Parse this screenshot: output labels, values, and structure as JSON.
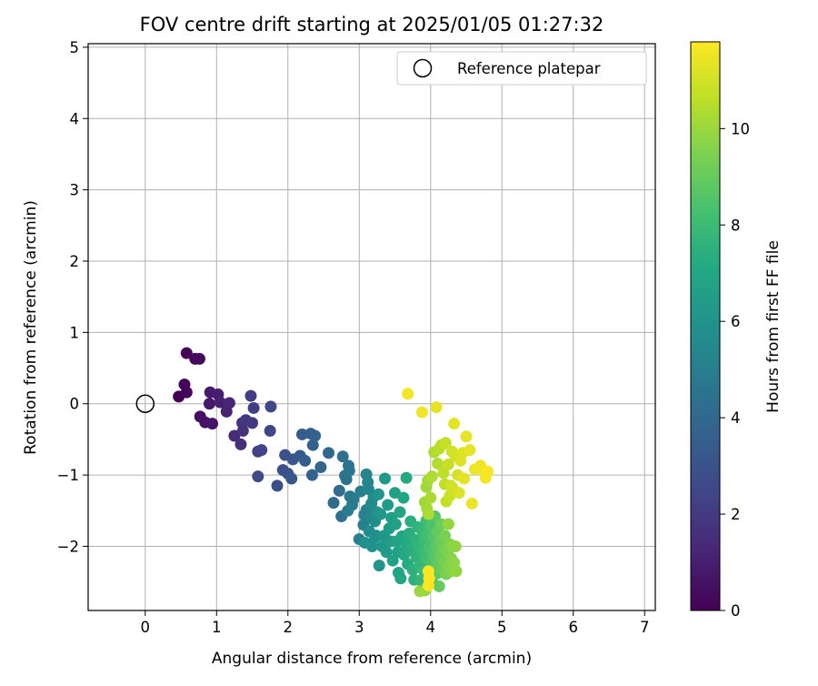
{
  "chart_data": {
    "type": "scatter",
    "title": "FOV centre drift starting at 2025/01/05 01:27:32",
    "xlabel": "Angular distance from reference (arcmin)",
    "ylabel": "Rotation from reference (arcmin)",
    "xlim": [
      -0.8,
      7.15
    ],
    "ylim": [
      -2.9,
      5.05
    ],
    "xticks": [
      "0",
      "1",
      "2",
      "3",
      "4",
      "5",
      "6",
      "7"
    ],
    "yticks": [
      "−2",
      "−1",
      "0",
      "1",
      "2",
      "3",
      "4",
      "5"
    ],
    "grid": true,
    "legend": {
      "placement": "top-right",
      "label": "Reference platepar"
    },
    "colorbar": {
      "label": "Hours from first FF file",
      "range": [
        0,
        11.8
      ],
      "ticks": [
        "0",
        "2",
        "4",
        "6",
        "8",
        "10"
      ],
      "colormap": "viridis"
    },
    "reference_point": {
      "x": 0.0,
      "y": 0.0
    },
    "series": [
      {
        "points": [
          [
            0.47,
            0.1,
            0.0
          ],
          [
            0.58,
            0.16,
            0.1
          ],
          [
            0.55,
            0.27,
            0.15
          ],
          [
            0.58,
            0.71,
            0.2
          ],
          [
            0.7,
            0.63,
            0.25
          ],
          [
            0.76,
            0.63,
            0.3
          ],
          [
            0.77,
            -0.18,
            0.45
          ],
          [
            0.84,
            -0.26,
            0.55
          ],
          [
            0.94,
            -0.28,
            0.65
          ],
          [
            0.9,
            0.0,
            0.75
          ],
          [
            0.91,
            0.16,
            0.85
          ],
          [
            1.02,
            0.13,
            0.95
          ],
          [
            1.05,
            0.02,
            1.05
          ],
          [
            1.14,
            -0.11,
            1.15
          ],
          [
            1.18,
            0.01,
            1.25
          ],
          [
            1.25,
            -0.45,
            1.4
          ],
          [
            1.34,
            -0.57,
            1.55
          ],
          [
            1.37,
            -0.38,
            1.65
          ],
          [
            1.36,
            -0.27,
            1.75
          ],
          [
            1.41,
            -0.23,
            1.85
          ],
          [
            1.5,
            -0.27,
            1.95
          ],
          [
            1.48,
            0.11,
            2.05
          ],
          [
            1.52,
            -0.06,
            2.15
          ],
          [
            1.58,
            -0.67,
            2.25
          ],
          [
            1.63,
            -0.65,
            2.35
          ],
          [
            1.75,
            -0.38,
            2.45
          ],
          [
            1.76,
            -0.04,
            2.55
          ],
          [
            1.58,
            -1.02,
            2.65
          ],
          [
            1.85,
            -1.15,
            2.75
          ],
          [
            1.93,
            -0.93,
            2.85
          ],
          [
            1.96,
            -0.72,
            2.95
          ],
          [
            2.0,
            -0.98,
            3.05
          ],
          [
            2.05,
            -1.05,
            3.15
          ],
          [
            2.07,
            -0.78,
            3.2
          ],
          [
            2.17,
            -0.73,
            3.3
          ],
          [
            2.2,
            -0.43,
            3.4
          ],
          [
            2.24,
            -0.8,
            3.5
          ],
          [
            2.32,
            -0.42,
            3.6
          ],
          [
            2.35,
            -0.58,
            3.65
          ],
          [
            2.38,
            -0.45,
            3.7
          ],
          [
            2.34,
            -1.0,
            3.75
          ],
          [
            2.46,
            -0.89,
            3.85
          ],
          [
            2.57,
            -0.69,
            3.95
          ],
          [
            2.64,
            -1.39,
            4.05
          ],
          [
            2.72,
            -1.22,
            4.15
          ],
          [
            2.75,
            -1.58,
            4.25
          ],
          [
            2.77,
            -0.74,
            4.35
          ],
          [
            2.8,
            -1.01,
            4.45
          ],
          [
            2.82,
            -1.06,
            4.5
          ],
          [
            2.85,
            -0.87,
            4.55
          ],
          [
            2.86,
            -0.94,
            4.6
          ],
          [
            2.87,
            -1.3,
            4.7
          ],
          [
            2.9,
            -1.42,
            4.75
          ],
          [
            2.92,
            -1.34,
            4.8
          ],
          [
            2.84,
            -1.5,
            4.9
          ],
          [
            3.0,
            -1.9,
            5.0
          ],
          [
            3.02,
            -1.23,
            5.05
          ],
          [
            3.06,
            -1.7,
            5.1
          ],
          [
            3.07,
            -1.56,
            5.2
          ],
          [
            3.1,
            -1.49,
            5.25
          ],
          [
            3.1,
            -0.99,
            5.3
          ],
          [
            3.12,
            -1.1,
            5.35
          ],
          [
            3.13,
            -1.2,
            5.4
          ],
          [
            3.16,
            -1.6,
            5.5
          ],
          [
            3.17,
            -1.4,
            5.55
          ],
          [
            3.14,
            -1.79,
            5.6
          ],
          [
            3.2,
            -1.31,
            5.7
          ],
          [
            3.22,
            -1.65,
            5.75
          ],
          [
            3.22,
            -1.87,
            5.8
          ],
          [
            3.24,
            -1.85,
            5.85
          ],
          [
            3.08,
            -1.95,
            5.9
          ],
          [
            3.18,
            -2.0,
            5.95
          ],
          [
            3.25,
            -1.52,
            6.0
          ],
          [
            3.27,
            -1.27,
            6.05
          ],
          [
            3.28,
            -2.27,
            6.1
          ],
          [
            3.3,
            -1.55,
            6.15
          ],
          [
            3.32,
            -2.0,
            6.2
          ],
          [
            3.35,
            -1.85,
            6.25
          ],
          [
            3.36,
            -1.05,
            6.3
          ],
          [
            3.38,
            -2.08,
            6.35
          ],
          [
            3.4,
            -1.42,
            6.4
          ],
          [
            3.42,
            -1.75,
            6.45
          ],
          [
            3.44,
            -1.93,
            6.5
          ],
          [
            3.45,
            -1.6,
            6.55
          ],
          [
            3.47,
            -2.2,
            6.6
          ],
          [
            3.5,
            -1.25,
            6.65
          ],
          [
            3.51,
            -1.69,
            6.7
          ],
          [
            3.52,
            -1.93,
            6.75
          ],
          [
            3.54,
            -2.08,
            6.8
          ],
          [
            3.55,
            -2.37,
            6.85
          ],
          [
            3.57,
            -1.52,
            6.9
          ],
          [
            3.58,
            -2.45,
            6.95
          ],
          [
            3.6,
            -1.86,
            7.0
          ],
          [
            3.62,
            -1.32,
            7.05
          ],
          [
            3.63,
            -2.12,
            7.1
          ],
          [
            3.66,
            -1.04,
            7.15
          ],
          [
            3.66,
            -1.97,
            7.2
          ],
          [
            3.68,
            -2.25,
            7.25
          ],
          [
            3.7,
            -1.82,
            7.3
          ],
          [
            3.72,
            -2.05,
            7.35
          ],
          [
            3.72,
            -1.65,
            7.4
          ],
          [
            3.75,
            -2.33,
            7.45
          ],
          [
            3.77,
            -2.47,
            7.5
          ],
          [
            3.79,
            -1.91,
            7.55
          ],
          [
            3.8,
            -2.15,
            7.6
          ],
          [
            3.82,
            -1.73,
            7.65
          ],
          [
            3.84,
            -2.0,
            7.7
          ],
          [
            3.85,
            -2.27,
            7.75
          ],
          [
            3.86,
            -2.48,
            7.8
          ],
          [
            3.88,
            -1.78,
            7.85
          ],
          [
            3.9,
            -2.07,
            7.9
          ],
          [
            3.91,
            -2.36,
            7.95
          ],
          [
            3.92,
            -1.92,
            8.0
          ],
          [
            3.93,
            -2.16,
            8.05
          ],
          [
            3.94,
            -1.64,
            8.1
          ],
          [
            3.95,
            -2.57,
            8.15
          ],
          [
            3.96,
            -1.83,
            8.2
          ],
          [
            3.97,
            -2.03,
            8.25
          ],
          [
            3.98,
            -2.3,
            8.3
          ],
          [
            4.0,
            -1.97,
            8.35
          ],
          [
            4.0,
            -2.21,
            8.4
          ],
          [
            4.01,
            -1.72,
            8.45
          ],
          [
            4.02,
            -2.45,
            8.5
          ],
          [
            4.03,
            -2.09,
            8.55
          ],
          [
            4.04,
            -1.87,
            8.6
          ],
          [
            4.05,
            -2.31,
            8.65
          ],
          [
            4.06,
            -1.58,
            8.7
          ],
          [
            4.07,
            -2.17,
            8.75
          ],
          [
            4.08,
            -2.0,
            8.8
          ],
          [
            4.09,
            -2.38,
            8.85
          ],
          [
            4.1,
            -1.79,
            8.9
          ],
          [
            4.11,
            -2.25,
            8.95
          ],
          [
            4.12,
            -2.56,
            9.0
          ],
          [
            4.13,
            -1.93,
            9.05
          ],
          [
            4.14,
            -2.13,
            9.1
          ],
          [
            4.15,
            -1.69,
            9.15
          ],
          [
            4.16,
            -2.33,
            9.2
          ],
          [
            4.18,
            -2.03,
            9.25
          ],
          [
            4.19,
            -2.22,
            9.3
          ],
          [
            4.2,
            -1.85,
            9.35
          ],
          [
            4.22,
            -2.39,
            9.4
          ],
          [
            4.24,
            -2.08,
            9.45
          ],
          [
            4.25,
            -2.27,
            9.5
          ],
          [
            4.27,
            -1.97,
            9.55
          ],
          [
            4.28,
            -2.35,
            9.6
          ],
          [
            4.29,
            -2.17,
            9.65
          ],
          [
            4.3,
            -2.0,
            9.7
          ],
          [
            4.33,
            -2.23,
            9.75
          ],
          [
            4.35,
            -2.0,
            9.8
          ],
          [
            4.36,
            -2.35,
            9.85
          ],
          [
            4.25,
            -1.69,
            9.9
          ],
          [
            3.92,
            -2.62,
            9.95
          ],
          [
            3.85,
            -2.63,
            10.0
          ],
          [
            3.92,
            -1.38,
            10.05
          ],
          [
            3.94,
            -1.17,
            10.1
          ],
          [
            3.96,
            -1.08,
            10.15
          ],
          [
            3.95,
            -1.47,
            10.2
          ],
          [
            3.97,
            -1.55,
            10.25
          ],
          [
            4.0,
            -1.32,
            10.3
          ],
          [
            4.02,
            -1.02,
            10.35
          ],
          [
            4.05,
            -0.68,
            10.4
          ],
          [
            4.1,
            -0.84,
            10.45
          ],
          [
            4.12,
            -0.63,
            10.5
          ],
          [
            4.15,
            -0.58,
            10.55
          ],
          [
            4.18,
            -0.97,
            10.6
          ],
          [
            4.2,
            -1.13,
            10.65
          ],
          [
            4.22,
            -1.37,
            10.7
          ],
          [
            4.21,
            -0.55,
            10.75
          ],
          [
            4.25,
            -0.85,
            10.8
          ],
          [
            4.27,
            -1.29,
            10.85
          ],
          [
            4.28,
            -1.15,
            10.9
          ],
          [
            4.3,
            -0.67,
            10.95
          ],
          [
            4.31,
            -1.18,
            11.0
          ],
          [
            4.35,
            -0.73,
            11.05
          ],
          [
            4.38,
            -1.0,
            11.1
          ],
          [
            4.4,
            -1.25,
            11.15
          ],
          [
            4.42,
            -0.8,
            11.2
          ],
          [
            4.45,
            -0.69,
            11.25
          ],
          [
            4.47,
            -1.05,
            11.3
          ],
          [
            4.5,
            -0.46,
            11.35
          ],
          [
            4.55,
            -0.65,
            11.4
          ],
          [
            4.58,
            -1.4,
            11.45
          ],
          [
            4.62,
            -0.92,
            11.5
          ],
          [
            4.7,
            -0.87,
            11.55
          ],
          [
            4.76,
            -0.96,
            11.6
          ],
          [
            4.77,
            -1.04,
            11.65
          ],
          [
            4.8,
            -0.95,
            11.7
          ],
          [
            3.68,
            0.14,
            11.6
          ],
          [
            3.88,
            -0.12,
            11.5
          ],
          [
            4.08,
            -0.05,
            11.4
          ],
          [
            4.33,
            -0.28,
            11.3
          ],
          [
            3.97,
            -2.55,
            11.7
          ],
          [
            3.97,
            -2.35,
            11.75
          ],
          [
            3.98,
            -2.45,
            11.8
          ]
        ]
      }
    ]
  }
}
